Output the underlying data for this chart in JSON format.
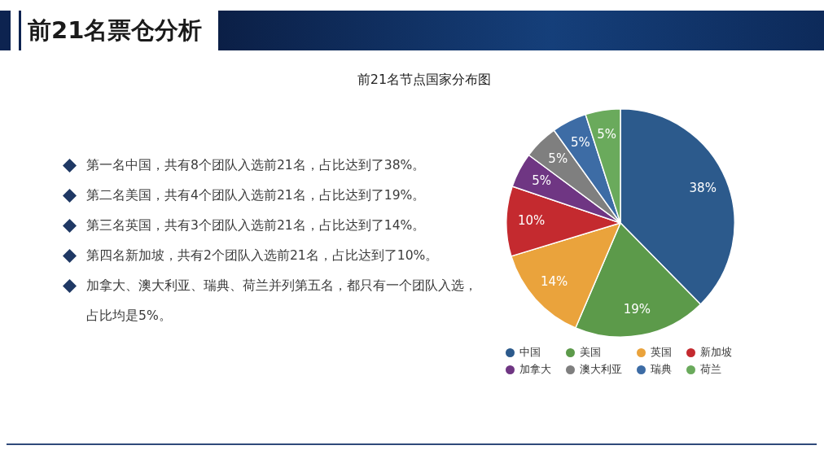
{
  "chart_data": {
    "type": "pie",
    "title": "前21名票仓分析",
    "subtitle": "前21名节点国家分布图",
    "categories": [
      "中国",
      "美国",
      "英国",
      "新加坡",
      "加拿大",
      "澳大利亚",
      "瑞典",
      "荷兰"
    ],
    "values": [
      38,
      19,
      14,
      10,
      5,
      5,
      5,
      5
    ],
    "colors": [
      "#2c5a8c",
      "#5c9a4a",
      "#eaa33c",
      "#c42a2f",
      "#6f3683",
      "#7f7f7f",
      "#3d6ca5",
      "#6aaa5c"
    ],
    "value_labels": [
      "38%",
      "19%",
      "14%",
      "10%",
      "5%",
      "5%",
      "5%",
      "5%"
    ],
    "legend": "bottom",
    "annotations": [
      "第一名中国，共有8个团队入选前21名，占比达到了38%。",
      "第二名美国，共有4个团队入选前21名，占比达到了19%。",
      "第三名英国，共有3个团队入选前21名，占比达到了14%。",
      "第四名新加坡，共有2个团队入选前21名，占比达到了10%。",
      "加拿大、澳大利亚、瑞典、荷兰并列第五名，都只有一个团队入选，占比均是5%。"
    ]
  }
}
